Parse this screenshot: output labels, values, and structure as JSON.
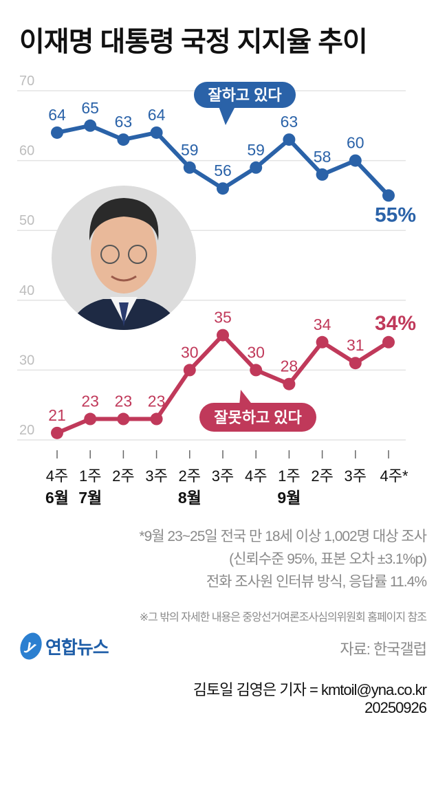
{
  "title": "이재명 대통령 국정 지지율 추이",
  "chart_data": {
    "type": "line",
    "title": "이재명 대통령 국정 지지율 추이",
    "categories": [
      "4주",
      "1주",
      "2주",
      "3주",
      "2주",
      "3주",
      "4주",
      "1주",
      "2주",
      "3주",
      "4주*"
    ],
    "month_labels": [
      "6월",
      "7월",
      "",
      "",
      "8월",
      "",
      "",
      "9월",
      "",
      "",
      ""
    ],
    "ylim": [
      20,
      70
    ],
    "yticks": [
      20,
      30,
      40,
      50,
      60,
      70
    ],
    "grid": true,
    "series": [
      {
        "name": "잘하고 있다",
        "color": "#2a62a8",
        "values": [
          64,
          65,
          63,
          64,
          59,
          56,
          59,
          63,
          58,
          60,
          55
        ],
        "last_label": "55%"
      },
      {
        "name": "잘못하고 있다",
        "color": "#c0395a",
        "values": [
          21,
          23,
          23,
          23,
          30,
          35,
          30,
          28,
          34,
          31,
          34
        ],
        "last_label": "34%"
      }
    ]
  },
  "notes": {
    "line1": "*9월 23~25일 전국 만 18세 이상 1,002명 대상 조사",
    "line2": "(신뢰수준 95%, 표본 오차 ±3.1%p)",
    "line3": "전화 조사원 인터뷰 방식, 응답률 11.4%",
    "footnote": "※그 밖의 자세한 내용은 중앙선거여론조사심의위원회 홈페이지 참조"
  },
  "logo": {
    "mark": "y",
    "text": "연합뉴스"
  },
  "source": "자료: 한국갤럽",
  "credit": {
    "byline": "김토일 김영은 기자 = kmtoil@yna.co.kr",
    "date": "20250926"
  }
}
